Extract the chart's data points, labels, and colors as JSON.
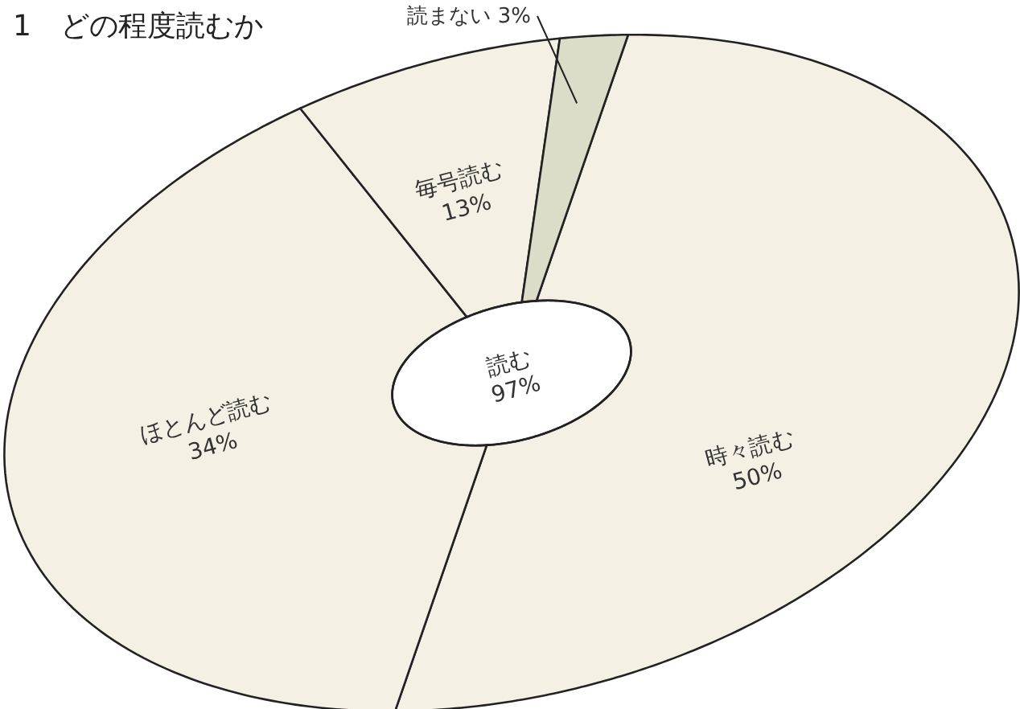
{
  "chart_data": {
    "type": "donut",
    "title": "1　どの程度読むか",
    "categories": [
      "時々読む",
      "ほとんど読む",
      "毎号読む",
      "読まない"
    ],
    "values": [
      50,
      34,
      13,
      3
    ],
    "value_labels": [
      "50%",
      "34%",
      "13%",
      "3%"
    ],
    "colors": [
      "#f5f0e4",
      "#f5f0e4",
      "#f5f0e4",
      "#dcdcc8"
    ],
    "annotations": [
      "読む 97%"
    ]
  }
}
